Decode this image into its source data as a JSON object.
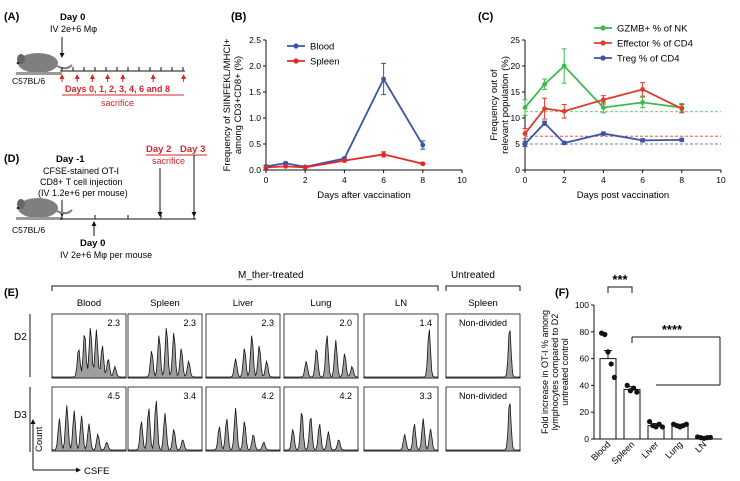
{
  "panels": {
    "A": {
      "letter": "(A)",
      "day0_label": "Day 0",
      "dose": "IV 2e+6 Mφ",
      "mouse": "C57BL/6",
      "days_label": "Days 0, 1, 2, 3, 4, 6 and 8",
      "sacrifice": "sacrifice"
    },
    "D": {
      "letter": "(D)",
      "day_minus1": "Day -1",
      "line1": "CFSE-stained OT-I",
      "line2": "CD8+ T cell injection",
      "line3": "(IV 1.2e+6 per mouse)",
      "day2": "Day 2",
      "day3": "Day 3",
      "sacrifice": "sacrifice",
      "mouse": "C57BL/6",
      "day0": "Day 0",
      "dose": "IV 2e+6 Mφ per mouse"
    },
    "B": {
      "letter": "(B)"
    },
    "C": {
      "letter": "(C)"
    },
    "E": {
      "letter": "(E)",
      "treated_header": "M_ther-treated",
      "untreated_header": "Untreated",
      "columns": [
        "Blood",
        "Spleen",
        "Liver",
        "Lung",
        "LN",
        "Spleen"
      ],
      "rows": [
        "D2",
        "D3"
      ],
      "values_d2": [
        "2.3",
        "2.3",
        "2.3",
        "2.0",
        "1.4",
        "Non-divided"
      ],
      "values_d3": [
        "4.5",
        "3.4",
        "4.2",
        "4.2",
        "3.3",
        "Non-divided"
      ],
      "ylabel": "Count",
      "xlabel": "CSFE"
    },
    "F": {
      "letter": "(F)"
    }
  },
  "chart_data": [
    {
      "panel": "B",
      "type": "line",
      "title": "",
      "xlabel": "Days after vaccination",
      "ylabel": "Frequency of SIINFEKL/MHCI+ among CD3+CD8+ (%)",
      "ylabel_lines": [
        "Frequency of SIINFEKL/MHCI+",
        "among CD3+CD8+ (%)"
      ],
      "xlim": [
        0,
        10
      ],
      "ylim": [
        0,
        2.5
      ],
      "xticks": [
        0,
        2,
        4,
        6,
        8,
        10
      ],
      "yticks": [
        0.0,
        0.5,
        1.0,
        1.5,
        2.0,
        2.5
      ],
      "ytick_labels": [
        "0.0",
        "0.5",
        "1.0",
        "1.5",
        "2.0",
        "2.5"
      ],
      "x": [
        0,
        1,
        2,
        4,
        6,
        8
      ],
      "legend": "top-left",
      "series": [
        {
          "name": "Blood",
          "color": "#3a55a4",
          "values": [
            0.07,
            0.13,
            0.06,
            0.22,
            1.75,
            0.48
          ],
          "errors": [
            0.02,
            0.02,
            0.02,
            0.03,
            0.3,
            0.08
          ]
        },
        {
          "name": "Spleen",
          "color": "#e02a2a",
          "values": [
            0.05,
            0.07,
            0.05,
            0.18,
            0.3,
            0.12
          ],
          "errors": [
            0.01,
            0.01,
            0.01,
            0.02,
            0.05,
            0.02
          ]
        }
      ]
    },
    {
      "panel": "C",
      "type": "line",
      "title": "",
      "xlabel": "Days post vaccination",
      "ylabel": "Frequency out of relevant population (%)",
      "ylabel_lines": [
        "Frequency out of",
        "relevant population (%)"
      ],
      "xlim": [
        0,
        10
      ],
      "ylim": [
        0,
        25
      ],
      "xticks": [
        0,
        2,
        4,
        6,
        8,
        10
      ],
      "yticks": [
        0,
        5,
        10,
        15,
        20,
        25
      ],
      "ytick_labels": [
        "0",
        "5",
        "10",
        "15",
        "20",
        "25"
      ],
      "x": [
        0,
        1,
        2,
        4,
        6,
        8
      ],
      "legend": "top-right",
      "series": [
        {
          "name": "GZMB+ % of NK",
          "color": "#3dba4a",
          "values": [
            12,
            16.5,
            20,
            12,
            13,
            12
          ],
          "errors": [
            1.5,
            1,
            3.3,
            1,
            1,
            0.8
          ],
          "baseline": 11.2
        },
        {
          "name": "Effector % of CD4",
          "color": "#e03a2e",
          "values": [
            7,
            11.8,
            11.3,
            13.5,
            15.5,
            11.8
          ],
          "errors": [
            1,
            2,
            1.3,
            0.8,
            1.3,
            0.8
          ],
          "baseline": 6.5
        },
        {
          "name": "Treg % of CD4",
          "color": "#3a55a4",
          "values": [
            5,
            9,
            5.2,
            7,
            5.7,
            5.8
          ],
          "errors": [
            0.5,
            0.4,
            0.3,
            0.3,
            0.3,
            0.3
          ],
          "baseline": 5.0
        }
      ]
    },
    {
      "panel": "F",
      "type": "bar",
      "title": "",
      "xlabel": "",
      "ylabel": "Fold increase in OT-I % among lymphocytes compared to D2 untreated control",
      "ylabel_lines": [
        "Fold increase in OT-I % among",
        "lymphocytes compared to D2",
        "untreated control"
      ],
      "ylim": [
        0,
        100
      ],
      "yticks": [
        0,
        20,
        40,
        60,
        80,
        100
      ],
      "ytick_labels": [
        "0",
        "20",
        "40",
        "60",
        "80",
        "100"
      ],
      "categories": [
        "Blood",
        "Spleen",
        "Liver",
        "Lung",
        "LN"
      ],
      "values": [
        60,
        37,
        10,
        10,
        1
      ],
      "errors": [
        6,
        2,
        1.5,
        1,
        0.3
      ],
      "points": [
        [
          79,
          78,
          65,
          56,
          46
        ],
        [
          40,
          36,
          38,
          35
        ],
        [
          13,
          10,
          9,
          11,
          9
        ],
        [
          11,
          10,
          9,
          10,
          11
        ],
        [
          1.5,
          1,
          0.5,
          1,
          1.2
        ]
      ],
      "significance": [
        "***",
        "****"
      ]
    }
  ]
}
